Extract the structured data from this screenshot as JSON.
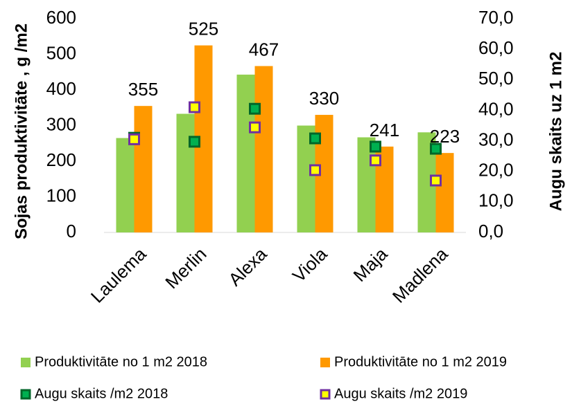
{
  "chart_data": {
    "type": "bar",
    "categories": [
      "Laulema",
      "Merlin",
      "Alexa",
      "Viola",
      "Maja",
      "Madlena"
    ],
    "ylabel": "Sojas produktivitāte , g /m2",
    "y2label": "Augu skaits  uz 1 m2",
    "ylim": [
      0,
      600
    ],
    "yticks": [
      0,
      100,
      200,
      300,
      400,
      500,
      600
    ],
    "y2lim": [
      0,
      70
    ],
    "y2ticks": [
      {
        "value": 0,
        "label": "0,0"
      },
      {
        "value": 10,
        "label": "10,0"
      },
      {
        "value": 20,
        "label": "20,0"
      },
      {
        "value": 30,
        "label": "30,0"
      },
      {
        "value": 40,
        "label": "40,0"
      },
      {
        "value": 50,
        "label": "50,0"
      },
      {
        "value": 60,
        "label": "60,0"
      },
      {
        "value": 70,
        "label": "70,0"
      }
    ],
    "grid": false,
    "legend": "bottom",
    "series": [
      {
        "name": "Produktivitāte no 1 m2 2018",
        "type": "bar",
        "color": "#92d050",
        "values": [
          265,
          333,
          443,
          300,
          267,
          281
        ]
      },
      {
        "name": "Produktivitāte no 1 m2 2019",
        "type": "bar",
        "color": "#ff9900",
        "data_labels": true,
        "values": [
          355,
          525,
          467,
          330,
          241,
          223
        ]
      },
      {
        "name": "Augu skaits /m2 2018",
        "type": "scatter",
        "axis": "y2",
        "color": "#00b050",
        "edgecolor": "#006629",
        "values": [
          31.0,
          29.7,
          40.5,
          30.8,
          28.1,
          27.4
        ]
      },
      {
        "name": "Augu skaits /m2 2019",
        "type": "scatter",
        "axis": "y2",
        "color": "#ffff00",
        "edgecolor": "#7030a0",
        "values": [
          30.5,
          41.0,
          34.4,
          20.4,
          23.6,
          17.0
        ]
      }
    ]
  }
}
